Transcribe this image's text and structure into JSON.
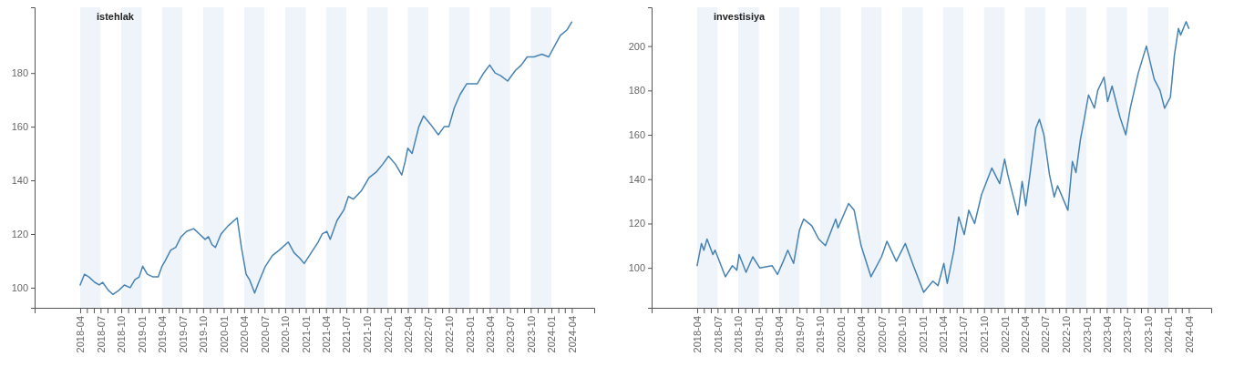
{
  "chart_data": [
    {
      "type": "line",
      "title": "istehlak",
      "xlim": [
        "2017-09-10",
        "2024-07-10"
      ],
      "ylim": [
        92.5,
        204.5
      ],
      "yticks": [
        100,
        120,
        140,
        160,
        180
      ],
      "xticks": [
        "2018-04",
        {
          "value": "2018-05",
          "label": null
        },
        {
          "value": "2018-06",
          "label": null
        },
        "2018-07",
        {
          "value": "2018-08",
          "label": null
        },
        {
          "value": "2018-09",
          "label": null
        },
        "2018-10",
        {
          "value": "2018-11",
          "label": null
        },
        {
          "value": "2018-12",
          "label": null
        },
        "2019-01",
        {
          "value": "2019-02",
          "label": null
        },
        {
          "value": "2019-03",
          "label": null
        },
        "2019-04",
        {
          "value": "2019-05",
          "label": null
        },
        {
          "value": "2019-06",
          "label": null
        },
        "2019-07",
        {
          "value": "2019-08",
          "label": null
        },
        {
          "value": "2019-09",
          "label": null
        },
        "2019-10",
        {
          "value": "2019-11",
          "label": null
        },
        {
          "value": "2019-12",
          "label": null
        },
        "2020-01",
        {
          "value": "2020-02",
          "label": null
        },
        {
          "value": "2020-03",
          "label": null
        },
        "2020-04",
        {
          "value": "2020-05",
          "label": null
        },
        {
          "value": "2020-06",
          "label": null
        },
        "2020-07",
        {
          "value": "2020-08",
          "label": null
        },
        {
          "value": "2020-09",
          "label": null
        },
        "2020-10",
        {
          "value": "2020-11",
          "label": null
        },
        {
          "value": "2020-12",
          "label": null
        },
        "2021-01",
        {
          "value": "2021-02",
          "label": null
        },
        {
          "value": "2021-03",
          "label": null
        },
        "2021-04",
        {
          "value": "2021-05",
          "label": null
        },
        {
          "value": "2021-06",
          "label": null
        },
        "2021-07",
        {
          "value": "2021-08",
          "label": null
        },
        {
          "value": "2021-09",
          "label": null
        },
        "2021-10",
        {
          "value": "2021-11",
          "label": null
        },
        {
          "value": "2021-12",
          "label": null
        },
        "2022-01",
        {
          "value": "2022-02",
          "label": null
        },
        {
          "value": "2022-03",
          "label": null
        },
        "2022-04",
        {
          "value": "2022-05",
          "label": null
        },
        {
          "value": "2022-06",
          "label": null
        },
        "2022-07",
        {
          "value": "2022-08",
          "label": null
        },
        {
          "value": "2022-09",
          "label": null
        },
        "2022-10",
        {
          "value": "2022-11",
          "label": null
        },
        {
          "value": "2022-12",
          "label": null
        },
        "2023-01",
        {
          "value": "2023-02",
          "label": null
        },
        {
          "value": "2023-03",
          "label": null
        },
        "2023-04",
        {
          "value": "2023-05",
          "label": null
        },
        {
          "value": "2023-06",
          "label": null
        },
        "2023-07",
        {
          "value": "2023-08",
          "label": null
        },
        {
          "value": "2023-09",
          "label": null
        },
        "2023-10",
        {
          "value": "2023-11",
          "label": null
        },
        {
          "value": "2023-12",
          "label": null
        },
        "2024-01",
        {
          "value": "2024-02",
          "label": null
        },
        {
          "value": "2024-03",
          "label": null
        },
        "2024-04"
      ],
      "bands": [
        {
          "axis": "x",
          "from": "2018-04",
          "to": "2018-07",
          "color": "#eef4fa"
        },
        {
          "axis": "x",
          "from": "2018-10",
          "to": "2019-01",
          "color": "#eef4fa"
        },
        {
          "axis": "x",
          "from": "2019-04",
          "to": "2019-07",
          "color": "#eef4fa"
        },
        {
          "axis": "x",
          "from": "2019-10",
          "to": "2020-01",
          "color": "#eef4fa"
        },
        {
          "axis": "x",
          "from": "2020-04",
          "to": "2020-07",
          "color": "#eef4fa"
        },
        {
          "axis": "x",
          "from": "2020-10",
          "to": "2021-01",
          "color": "#eef4fa"
        },
        {
          "axis": "x",
          "from": "2021-04",
          "to": "2021-07",
          "color": "#eef4fa"
        },
        {
          "axis": "x",
          "from": "2021-10",
          "to": "2022-01",
          "color": "#eef4fa"
        },
        {
          "axis": "x",
          "from": "2022-04",
          "to": "2022-07",
          "color": "#eef4fa"
        },
        {
          "axis": "x",
          "from": "2022-10",
          "to": "2023-01",
          "color": "#eef4fa"
        },
        {
          "axis": "x",
          "from": "2023-04",
          "to": "2023-07",
          "color": "#eef4fa"
        },
        {
          "axis": "x",
          "from": "2023-10",
          "to": "2024-01",
          "color": "#eef4fa"
        }
      ],
      "series": [
        {
          "color": "#4682b4",
          "x": [
            "2018-04-01",
            "2018-04-20",
            "2018-05-10",
            "2018-06-05",
            "2018-06-25",
            "2018-07-10",
            "2018-08-05",
            "2018-08-25",
            "2018-09-20",
            "2018-10-15",
            "2018-11-10",
            "2018-12-01",
            "2018-12-20",
            "2019-01-05",
            "2019-01-25",
            "2019-02-20",
            "2019-03-15",
            "2019-04-01",
            "2019-04-15",
            "2019-05-10",
            "2019-06-01",
            "2019-06-25",
            "2019-07-20",
            "2019-08-20",
            "2019-09-15",
            "2019-10-10",
            "2019-10-25",
            "2019-11-10",
            "2019-11-25",
            "2019-12-20",
            "2020-01-20",
            "2020-03-01",
            "2020-03-20",
            "2020-04-10",
            "2020-04-25",
            "2020-05-18",
            "2020-06-05",
            "2020-07-05",
            "2020-08-05",
            "2020-09-05",
            "2020-10-15",
            "2020-11-10",
            "2020-12-05",
            "2020-12-25",
            "2021-01-25",
            "2021-02-25",
            "2021-03-15",
            "2021-04-05",
            "2021-04-20",
            "2021-05-20",
            "2021-06-20",
            "2021-07-10",
            "2021-08-01",
            "2021-09-05",
            "2021-10-10",
            "2021-11-10",
            "2021-12-10",
            "2022-01-05",
            "2022-02-05",
            "2022-03-05",
            "2022-03-20",
            "2022-04-01",
            "2022-04-20",
            "2022-05-20",
            "2022-06-10",
            "2022-07-10",
            "2022-08-15",
            "2022-09-10",
            "2022-10-01",
            "2022-10-25",
            "2022-11-20",
            "2022-12-20",
            "2023-02-05",
            "2023-03-05",
            "2023-04-01",
            "2023-04-25",
            "2023-05-20",
            "2023-06-20",
            "2023-07-25",
            "2023-08-20",
            "2023-09-15",
            "2023-10-15",
            "2023-11-20",
            "2023-12-20",
            "2024-01-15",
            "2024-02-10",
            "2024-03-10",
            "2024-04-01"
          ],
          "values": [
            101,
            105,
            104,
            102,
            101,
            102,
            99,
            97.5,
            99,
            101,
            100,
            103,
            104,
            108,
            105,
            104,
            104,
            108,
            110,
            114,
            115,
            119,
            121,
            122,
            120,
            118,
            119,
            116,
            115,
            120,
            123,
            126,
            115,
            105,
            103,
            98,
            102,
            108,
            112,
            114,
            117,
            113,
            111,
            109,
            113,
            117,
            120,
            121,
            118,
            125,
            129,
            134,
            133,
            136,
            141,
            143,
            146,
            149,
            146,
            142,
            147,
            152,
            150,
            160,
            164,
            161,
            157,
            160,
            160,
            167,
            172,
            176,
            176,
            180,
            183,
            180,
            179,
            177,
            181,
            183,
            186,
            186,
            187,
            186,
            190,
            194,
            196,
            199
          ]
        }
      ]
    },
    {
      "type": "line",
      "title": "investisiya",
      "xlim": [
        "2017-09-10",
        "2024-07-10"
      ],
      "ylim": [
        82,
        217.5
      ],
      "yticks": [
        100,
        120,
        140,
        160,
        180,
        200
      ],
      "xticks": [
        "2018-04",
        {
          "value": "2018-05",
          "label": null
        },
        {
          "value": "2018-06",
          "label": null
        },
        "2018-07",
        {
          "value": "2018-08",
          "label": null
        },
        {
          "value": "2018-09",
          "label": null
        },
        "2018-10",
        {
          "value": "2018-11",
          "label": null
        },
        {
          "value": "2018-12",
          "label": null
        },
        "2019-01",
        {
          "value": "2019-02",
          "label": null
        },
        {
          "value": "2019-03",
          "label": null
        },
        "2019-04",
        {
          "value": "2019-05",
          "label": null
        },
        {
          "value": "2019-06",
          "label": null
        },
        "2019-07",
        {
          "value": "2019-08",
          "label": null
        },
        {
          "value": "2019-09",
          "label": null
        },
        "2019-10",
        {
          "value": "2019-11",
          "label": null
        },
        {
          "value": "2019-12",
          "label": null
        },
        "2020-01",
        {
          "value": "2020-02",
          "label": null
        },
        {
          "value": "2020-03",
          "label": null
        },
        "2020-04",
        {
          "value": "2020-05",
          "label": null
        },
        {
          "value": "2020-06",
          "label": null
        },
        "2020-07",
        {
          "value": "2020-08",
          "label": null
        },
        {
          "value": "2020-09",
          "label": null
        },
        "2020-10",
        {
          "value": "2020-11",
          "label": null
        },
        {
          "value": "2020-12",
          "label": null
        },
        "2021-01",
        {
          "value": "2021-02",
          "label": null
        },
        {
          "value": "2021-03",
          "label": null
        },
        "2021-04",
        {
          "value": "2021-05",
          "label": null
        },
        {
          "value": "2021-06",
          "label": null
        },
        "2021-07",
        {
          "value": "2021-08",
          "label": null
        },
        {
          "value": "2021-09",
          "label": null
        },
        "2021-10",
        {
          "value": "2021-11",
          "label": null
        },
        {
          "value": "2021-12",
          "label": null
        },
        "2022-01",
        {
          "value": "2022-02",
          "label": null
        },
        {
          "value": "2022-03",
          "label": null
        },
        "2022-04",
        {
          "value": "2022-05",
          "label": null
        },
        {
          "value": "2022-06",
          "label": null
        },
        "2022-07",
        {
          "value": "2022-08",
          "label": null
        },
        {
          "value": "2022-09",
          "label": null
        },
        "2022-10",
        {
          "value": "2022-11",
          "label": null
        },
        {
          "value": "2022-12",
          "label": null
        },
        "2023-01",
        {
          "value": "2023-02",
          "label": null
        },
        {
          "value": "2023-03",
          "label": null
        },
        "2023-04",
        {
          "value": "2023-05",
          "label": null
        },
        {
          "value": "2023-06",
          "label": null
        },
        "2023-07",
        {
          "value": "2023-08",
          "label": null
        },
        {
          "value": "2023-09",
          "label": null
        },
        "2023-10",
        {
          "value": "2023-11",
          "label": null
        },
        {
          "value": "2023-12",
          "label": null
        },
        "2024-01",
        {
          "value": "2024-02",
          "label": null
        },
        {
          "value": "2024-03",
          "label": null
        },
        "2024-04"
      ],
      "bands": [
        {
          "axis": "x",
          "from": "2018-04",
          "to": "2018-07",
          "color": "#eef4fa"
        },
        {
          "axis": "x",
          "from": "2018-10",
          "to": "2019-01",
          "color": "#eef4fa"
        },
        {
          "axis": "x",
          "from": "2019-04",
          "to": "2019-07",
          "color": "#eef4fa"
        },
        {
          "axis": "x",
          "from": "2019-10",
          "to": "2020-01",
          "color": "#eef4fa"
        },
        {
          "axis": "x",
          "from": "2020-04",
          "to": "2020-07",
          "color": "#eef4fa"
        },
        {
          "axis": "x",
          "from": "2020-10",
          "to": "2021-01",
          "color": "#eef4fa"
        },
        {
          "axis": "x",
          "from": "2021-04",
          "to": "2021-07",
          "color": "#eef4fa"
        },
        {
          "axis": "x",
          "from": "2021-10",
          "to": "2022-01",
          "color": "#eef4fa"
        },
        {
          "axis": "x",
          "from": "2022-04",
          "to": "2022-07",
          "color": "#eef4fa"
        },
        {
          "axis": "x",
          "from": "2022-10",
          "to": "2023-01",
          "color": "#eef4fa"
        },
        {
          "axis": "x",
          "from": "2023-04",
          "to": "2023-07",
          "color": "#eef4fa"
        },
        {
          "axis": "x",
          "from": "2023-10",
          "to": "2024-01",
          "color": "#eef4fa"
        }
      ],
      "series": [
        {
          "color": "#4682b4",
          "x": [
            "2018-04-01",
            "2018-04-20",
            "2018-05-01",
            "2018-05-15",
            "2018-06-10",
            "2018-06-20",
            "2018-08-05",
            "2018-09-05",
            "2018-09-25",
            "2018-10-05",
            "2018-11-05",
            "2018-12-05",
            "2019-01-05",
            "2019-03-01",
            "2019-03-25",
            "2019-04-20",
            "2019-05-10",
            "2019-06-05",
            "2019-07-01",
            "2019-07-20",
            "2019-08-25",
            "2019-09-25",
            "2019-10-25",
            "2019-12-10",
            "2019-12-20",
            "2020-02-05",
            "2020-03-01",
            "2020-04-01",
            "2020-05-15",
            "2020-07-01",
            "2020-07-25",
            "2020-09-05",
            "2020-10-15",
            "2020-11-20",
            "2021-01-05",
            "2021-02-15",
            "2021-03-10",
            "2021-04-05",
            "2021-04-20",
            "2021-05-20",
            "2021-06-10",
            "2021-07-05",
            "2021-07-25",
            "2021-08-20",
            "2021-09-20",
            "2021-11-05",
            "2021-12-10",
            "2022-01-01",
            "2022-01-15",
            "2022-03-01",
            "2022-03-20",
            "2022-04-05",
            "2022-04-25",
            "2022-05-20",
            "2022-06-05",
            "2022-06-25",
            "2022-07-20",
            "2022-08-10",
            "2022-08-25",
            "2022-10-10",
            "2022-10-30",
            "2022-11-15",
            "2022-12-05",
            "2022-12-20",
            "2023-01-10",
            "2023-02-05",
            "2023-02-20",
            "2023-03-20",
            "2023-04-05",
            "2023-04-25",
            "2023-05-30",
            "2023-06-25",
            "2023-07-15",
            "2023-08-20",
            "2023-09-25",
            "2023-10-30",
            "2023-11-25",
            "2023-12-15",
            "2024-01-10",
            "2024-01-28",
            "2024-02-15",
            "2024-02-25",
            "2024-03-20",
            "2024-04-01"
          ],
          "values": [
            101,
            111,
            108,
            113,
            106,
            108,
            96,
            101,
            99,
            106,
            98,
            105,
            100,
            101,
            97,
            103,
            108,
            102,
            117,
            122,
            119,
            113,
            110,
            122,
            118,
            129,
            126,
            110,
            96,
            105,
            112,
            103,
            111,
            101,
            89,
            94,
            92,
            102,
            93,
            108,
            123,
            115,
            126,
            120,
            133,
            145,
            138,
            149,
            142,
            124,
            139,
            128,
            143,
            163,
            167,
            160,
            142,
            132,
            137,
            126,
            148,
            143,
            158,
            166,
            178,
            172,
            180,
            186,
            175,
            182,
            168,
            160,
            172,
            188,
            200,
            185,
            180,
            172,
            177,
            196,
            208,
            205,
            211,
            208
          ]
        }
      ]
    }
  ]
}
